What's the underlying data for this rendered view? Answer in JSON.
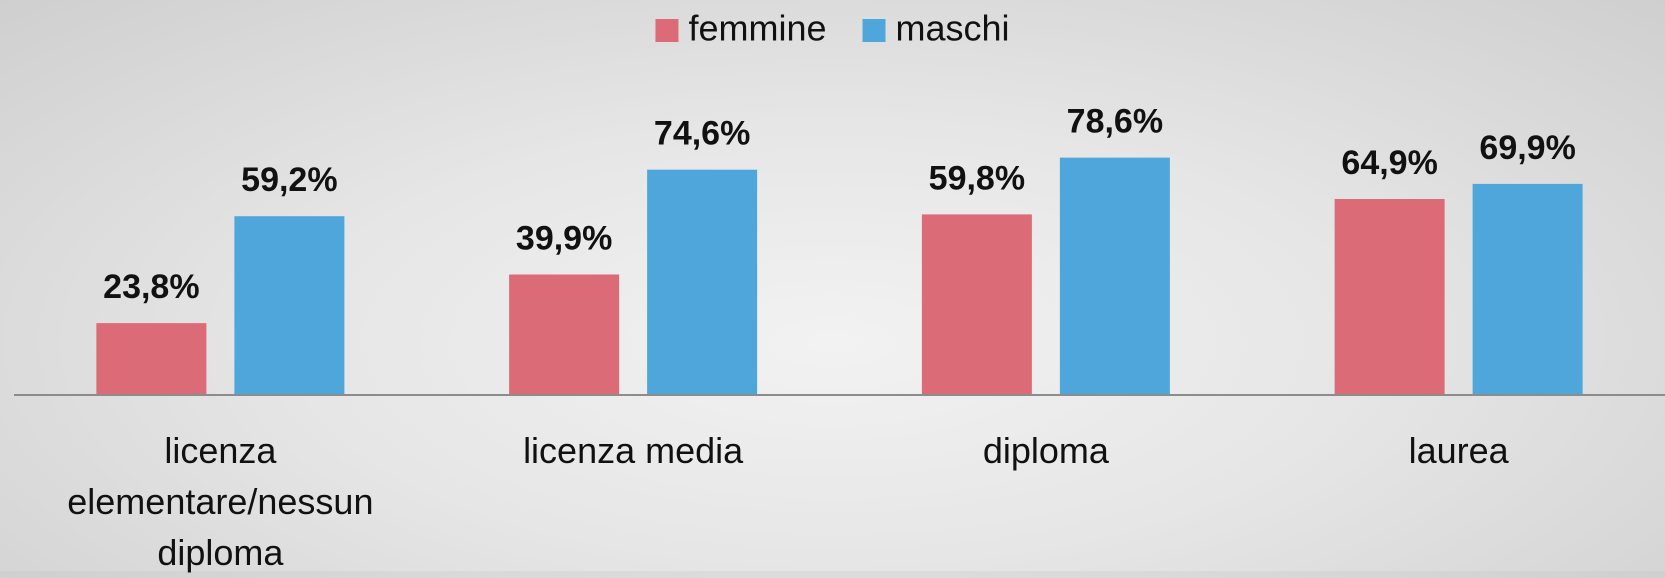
{
  "chart_data": {
    "type": "bar",
    "categories": [
      "licenza elementare/nessun diploma",
      "licenza media",
      "diploma",
      "laurea"
    ],
    "series": [
      {
        "name": "femmine",
        "color": "#db6b77",
        "values": [
          23.8,
          39.9,
          59.8,
          64.9
        ],
        "value_labels": [
          "23,8%",
          "39,9%",
          "59,8%",
          "64,9%"
        ]
      },
      {
        "name": "maschi",
        "color": "#4fa6db",
        "values": [
          59.2,
          74.6,
          78.6,
          69.9
        ],
        "value_labels": [
          "59,2%",
          "74,6%",
          "78,6%",
          "69,9%"
        ]
      }
    ],
    "ylim": [
      0,
      100
    ],
    "legend": "top"
  }
}
